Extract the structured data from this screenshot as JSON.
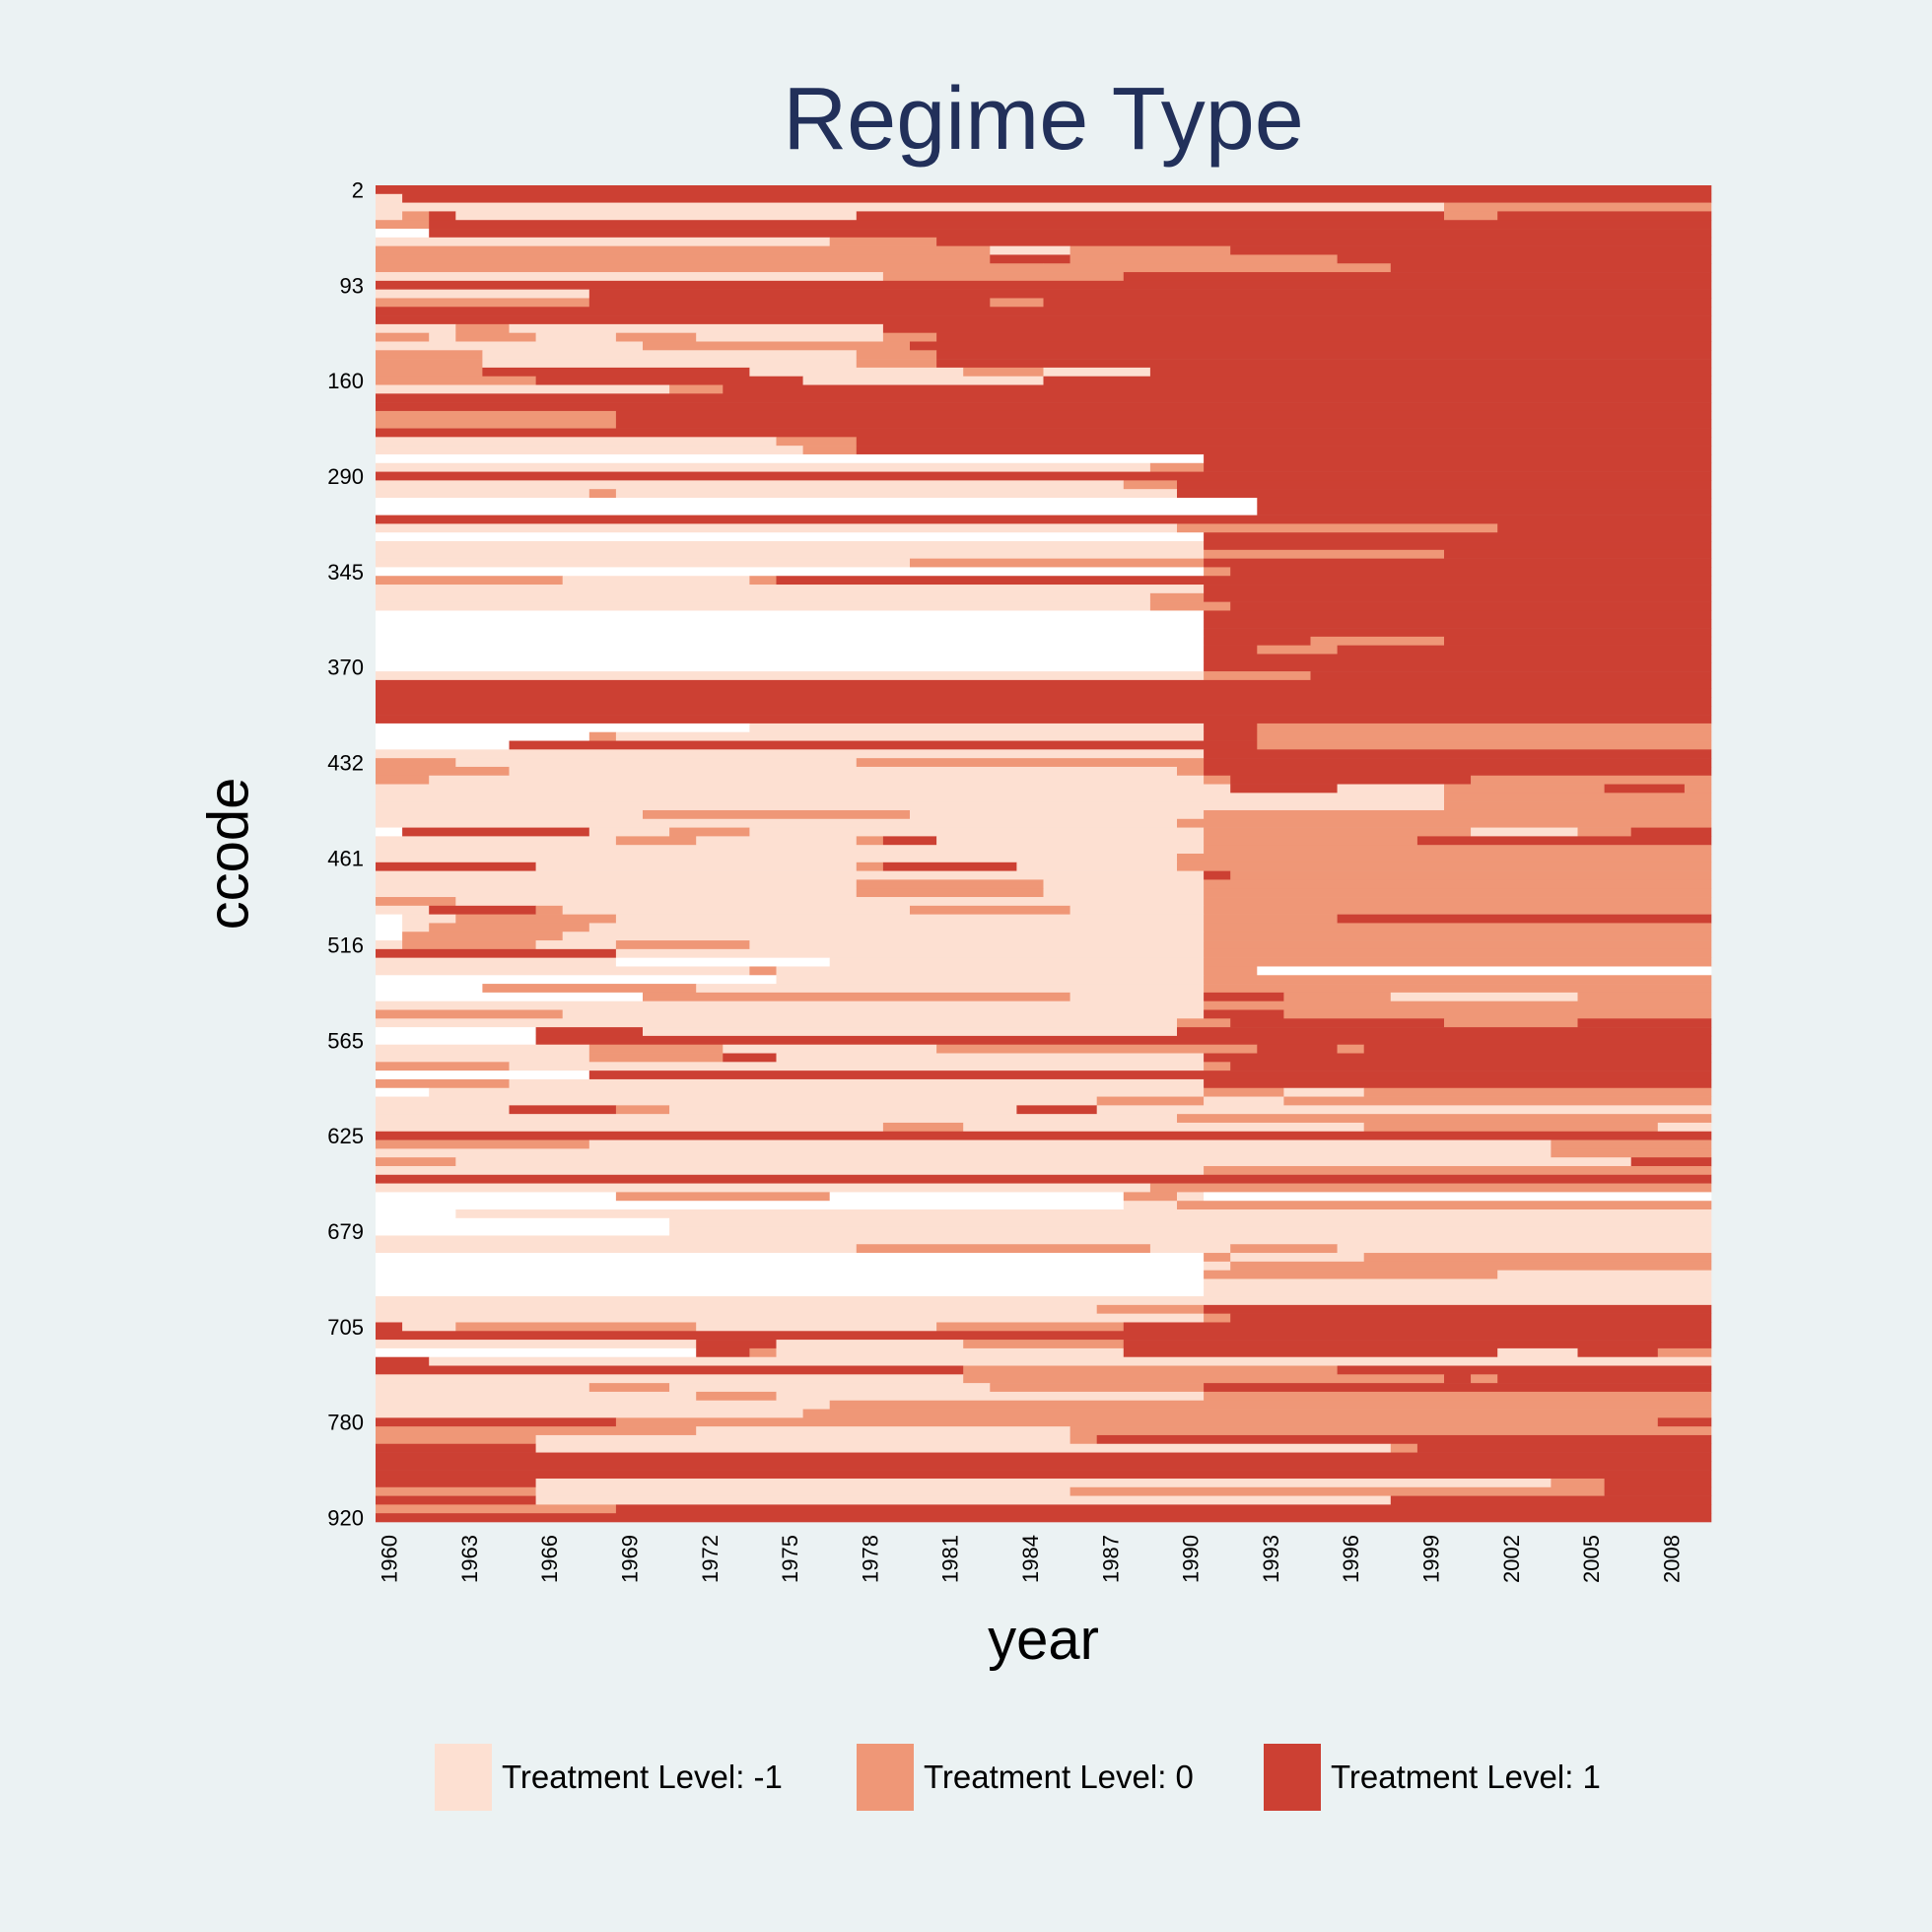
{
  "chart_data": {
    "type": "heatmap",
    "title": "Regime Type",
    "xlabel": "year",
    "ylabel": "ccode",
    "x_range": [
      1960,
      2009
    ],
    "x_ticks": [
      "1960",
      "1963",
      "1966",
      "1969",
      "1972",
      "1975",
      "1978",
      "1981",
      "1984",
      "1987",
      "1990",
      "1993",
      "1996",
      "1999",
      "2002",
      "2005",
      "2008"
    ],
    "y_ticks": [
      "2",
      "93",
      "160",
      "290",
      "345",
      "370",
      "432",
      "461",
      "516",
      "565",
      "625",
      "679",
      "705",
      "780",
      "920"
    ],
    "legend": [
      {
        "label": "Treatment Level: -1",
        "code": "a",
        "color": "#fde0d2"
      },
      {
        "label": "Treatment Level: 0",
        "code": "b",
        "color": "#ef9777"
      },
      {
        "label": "Treatment Level: 1",
        "code": "c",
        "color": "#cc4033"
      }
    ],
    "missing_color": "#ffffff",
    "encoding_note_codes": {
      "n": "missing",
      "a": -1,
      "b": 0,
      "c": 1
    },
    "rows": [
      "c50",
      "a1 c49",
      "a40 b10",
      "a1 b1 c1 a15 c22 b2 c8",
      "b2 c48",
      "n2 c48",
      "a17 b4 c29",
      "b17 b6 a3 b6 c18",
      "b17 b6 c3 b10 c14",
      "b17 b8 b5 b8 c12",
      "a17 a2 b9 c22",
      "c50",
      "a8 c42",
      "b8 c15 b2 c25",
      "c50",
      "c50",
      "a3 b2 a14 c31",
      "b2 a1 b3 a3 b3 a7 b2 c29",
      "a10 b10 c30",
      "b4 a14 b3 c29",
      "b4 a14 b3 c29",
      "b4 c10 a8 b3 a4 c21",
      "b6 c10 a9 c25",
      "a11 b2 c37",
      "c50",
      "c50",
      "b9 c41",
      "b9 c41",
      "c50",
      "a15 b3 c32",
      "a16 b2 c32",
      "n31 c19",
      "a29 b2 c19",
      "c50",
      "a28 b2 c20",
      "a8 b1 a21 c20",
      "n33 c17",
      "n33 c17",
      "c50",
      "a30 b12 c8",
      "n31 c19",
      "a31 c19",
      "a31 b9 c10",
      "a20 b11 c19",
      "n31 b1 c18",
      "b7 a7 b1 c35",
      "a31 c19",
      "a29 b2 c19",
      "a29 b3 c18",
      "n31 c19",
      "n31 c19",
      "n31 c19",
      "n31 c4 b5 c10",
      "n31 c2 b3 c14",
      "n31 c19",
      "n31 c19",
      "a31 b4 c15",
      "c50",
      "c50",
      "c50",
      "c50",
      "c50",
      "n14 a17 c2 b17",
      "n8 b1 a22 c2 b17",
      "n5 c28 b17",
      "a31 c19",
      "b3 a15 b13 c19",
      "b5 a25 b1 c19",
      "b2 a29 b1 c9 b9",
      "a32 c4 a4 b6 c3 b1",
      "a40 b10",
      "a40 b10",
      "a10 b10 a11 b19",
      "a30 b20",
      "n1 c7 a3 b3 a17 b10 a4 b2 c3",
      "a9 b3 a6 b1 c2 a10 b8 c11",
      "a31 b19",
      "a30 b20",
      "c6 a12 b1 c5 a6 b20",
      "a31 c1 b18",
      "a18 b7 a6 b19",
      "a18 b7 a6 b19",
      "b3 a28 b19",
      "a2 c4 b1 a13 b6 a5 b19",
      "n1 a2 b6 a22 b5 c14",
      "n1 a1 b6 a23 b19",
      "n1 b6 a24 b19",
      "a1 b5 a3 b5 a17 b19",
      "c9 a22 b19",
      "a9 n8 a14 b19",
      "a14 b1 a16 b2 n17",
      "n15 a16 b19",
      "n4 b8 a19 b19",
      "n10 b16 a5 c3 b4 a7 b5",
      "a31 b19",
      "b7 a24 c3 b16",
      "a30 b2 c8 b5 c5",
      "n6 c4 a20 c20",
      "n6 c44",
      "a8 b5 a8 b12 c3 b1 c13",
      "a8 b5 c2 a16 c19",
      "b5 a26 b1 c18",
      "n8 c42",
      "b5 a26 c19",
      "n2 a29 b3 a3 b13",
      "a27 b4 a3 b16",
      "a5 c4 b2 a13 c3 a23",
      "a30 b20",
      "a19 b3 a15 b11 a2",
      "c50",
      "b8 a36 b6",
      "a44 b6",
      "b3 a44 c3",
      "a31 b19",
      "c50",
      "a29 b21",
      "n9 b8 n11 b2 a1 n19",
      "n28 a2 b20",
      "n3 a47",
      "n11 a39",
      "n11 a39",
      "a50",
      "a18 b11 a3 b4 a14",
      "n31 b1 a5 b13",
      "n31 a1 b18",
      "n31 b11 a8",
      "n31 a19",
      "n31 a19",
      "a50",
      "a27 b4 c19",
      "a31 b1 c18",
      "c1 a2 b9 a9 b7 c22",
      "c50",
      "a12 c3 a7 b6 c22",
      "n12 c2 b1 a13 c14 a3 c3 b2",
      "c2 a48",
      "c22 b14 c14",
      "a22 b18 c1 b1 c8",
      "a8 b3 a12 b8 c19",
      "a12 b3 a16 b19",
      "a17 b33",
      "a16 b34",
      "c9 b39 c2",
      "b12 a14 b24",
      "b6 a20 b1 c23",
      "c6 a32 b1 c11",
      "c50",
      "c50",
      "c50",
      "c6 a38 b2 c4",
      "b6 a20 b20 c4",
      "c6 a32 c12",
      "b9 c41",
      "c50"
    ]
  }
}
